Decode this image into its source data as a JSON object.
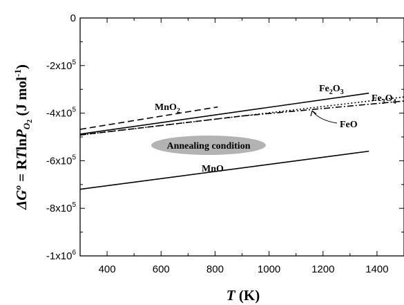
{
  "chart_data": {
    "type": "line",
    "xlabel": {
      "symbol": "T",
      "unit": "(K)"
    },
    "ylabel": {
      "parts": [
        "ΔG",
        "o",
        " = R",
        "T",
        "ln",
        "P",
        "O",
        "2",
        " (J mol",
        "-1",
        ")"
      ]
    },
    "xlim": [
      300,
      1500
    ],
    "ylim": [
      -1000000,
      0
    ],
    "x_ticks": [
      400,
      600,
      800,
      1000,
      1200,
      1400
    ],
    "y_ticks": [
      {
        "value": 0,
        "label": "0",
        "exp": ""
      },
      {
        "value": -200000,
        "label": "-2x10",
        "exp": "5"
      },
      {
        "value": -400000,
        "label": "-4x10",
        "exp": "5"
      },
      {
        "value": -600000,
        "label": "-6x10",
        "exp": "5"
      },
      {
        "value": -800000,
        "label": "-8x10",
        "exp": "5"
      },
      {
        "value": -1000000,
        "label": "-1x10",
        "exp": "6"
      }
    ],
    "grid": false,
    "series": [
      {
        "name": "MnO2",
        "style": "dashed",
        "x": [
          300,
          810
        ],
        "y": [
          -468000,
          -374000
        ]
      },
      {
        "name": "Fe2O3",
        "style": "solid",
        "x": [
          300,
          1370
        ],
        "y": [
          -488000,
          -316000
        ]
      },
      {
        "name": "Fe3O4",
        "style": "dotted",
        "x": [
          300,
          1500
        ],
        "y": [
          -492000,
          -332000
        ]
      },
      {
        "name": "FeO",
        "style": "dashdot",
        "x": [
          900,
          1500
        ],
        "y": [
          -412000,
          -349000
        ]
      },
      {
        "name": "FeO-dashed",
        "style": "dashed",
        "x": [
          300,
          900
        ],
        "y": [
          -492000,
          -412000
        ]
      },
      {
        "name": "MnO",
        "style": "solid",
        "x": [
          300,
          1370
        ],
        "y": [
          -720000,
          -560000
        ]
      }
    ],
    "annotations": {
      "mno2": {
        "base": "MnO",
        "sub": "2"
      },
      "fe2o3": {
        "base": "Fe",
        "sub1": "2",
        "mid": "O",
        "sub2": "3"
      },
      "fe3o4": {
        "base": "Fe",
        "sub1": "3",
        "mid": "O",
        "sub2": "4"
      },
      "feo": "FeO",
      "mno": "MnO",
      "annealing": "Annealing condition"
    },
    "annealing_fill": "#b3b3b3"
  }
}
